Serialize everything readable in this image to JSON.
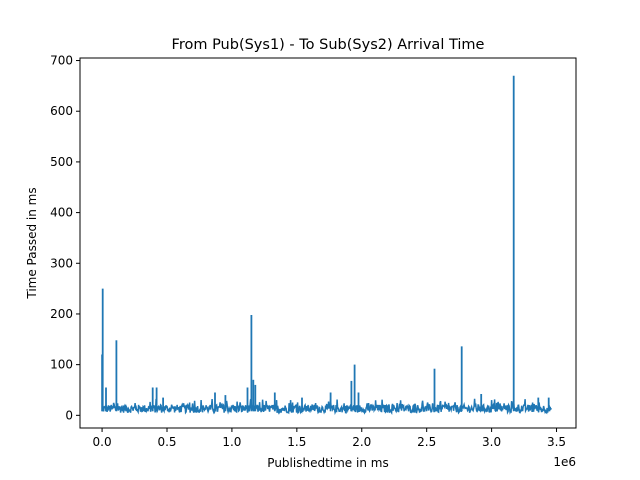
{
  "chart_data": {
    "type": "line",
    "title": "From Pub(Sys1) - To Sub(Sys2) Arrival Time",
    "xlabel": "Publishedtime in ms",
    "ylabel": "Time Passed in ms",
    "x_offset_text": "1e6",
    "xlim": [
      -170000,
      3650000
    ],
    "ylim": [
      -25,
      705
    ],
    "x_ticks": [
      0,
      500000,
      1000000,
      1500000,
      2000000,
      2500000,
      3000000,
      3500000
    ],
    "x_tick_labels": [
      "0.0",
      "0.5",
      "1.0",
      "1.5",
      "2.0",
      "2.5",
      "3.0",
      "3.5"
    ],
    "y_ticks": [
      0,
      100,
      200,
      300,
      400,
      500,
      600,
      700
    ],
    "y_tick_labels": [
      "0",
      "100",
      "200",
      "300",
      "400",
      "500",
      "600",
      "700"
    ],
    "grid": false,
    "series": [
      {
        "color": "#1f77b4",
        "x_range": [
          0,
          3460000
        ],
        "baseline_range": [
          5,
          25
        ],
        "spikes": [
          {
            "x": 0,
            "y": 120
          },
          {
            "x": 5000,
            "y": 250
          },
          {
            "x": 30000,
            "y": 55
          },
          {
            "x": 110000,
            "y": 148
          },
          {
            "x": 390000,
            "y": 55
          },
          {
            "x": 420000,
            "y": 55
          },
          {
            "x": 470000,
            "y": 35
          },
          {
            "x": 870000,
            "y": 45
          },
          {
            "x": 950000,
            "y": 40
          },
          {
            "x": 1120000,
            "y": 55
          },
          {
            "x": 1150000,
            "y": 198
          },
          {
            "x": 1165000,
            "y": 70
          },
          {
            "x": 1180000,
            "y": 60
          },
          {
            "x": 1330000,
            "y": 45
          },
          {
            "x": 1540000,
            "y": 35
          },
          {
            "x": 1760000,
            "y": 45
          },
          {
            "x": 1920000,
            "y": 68
          },
          {
            "x": 1945000,
            "y": 100
          },
          {
            "x": 1975000,
            "y": 45
          },
          {
            "x": 2560000,
            "y": 92
          },
          {
            "x": 2770000,
            "y": 136
          },
          {
            "x": 2920000,
            "y": 42
          },
          {
            "x": 3170000,
            "y": 670
          },
          {
            "x": 3360000,
            "y": 35
          },
          {
            "x": 3440000,
            "y": 35
          }
        ]
      }
    ]
  }
}
